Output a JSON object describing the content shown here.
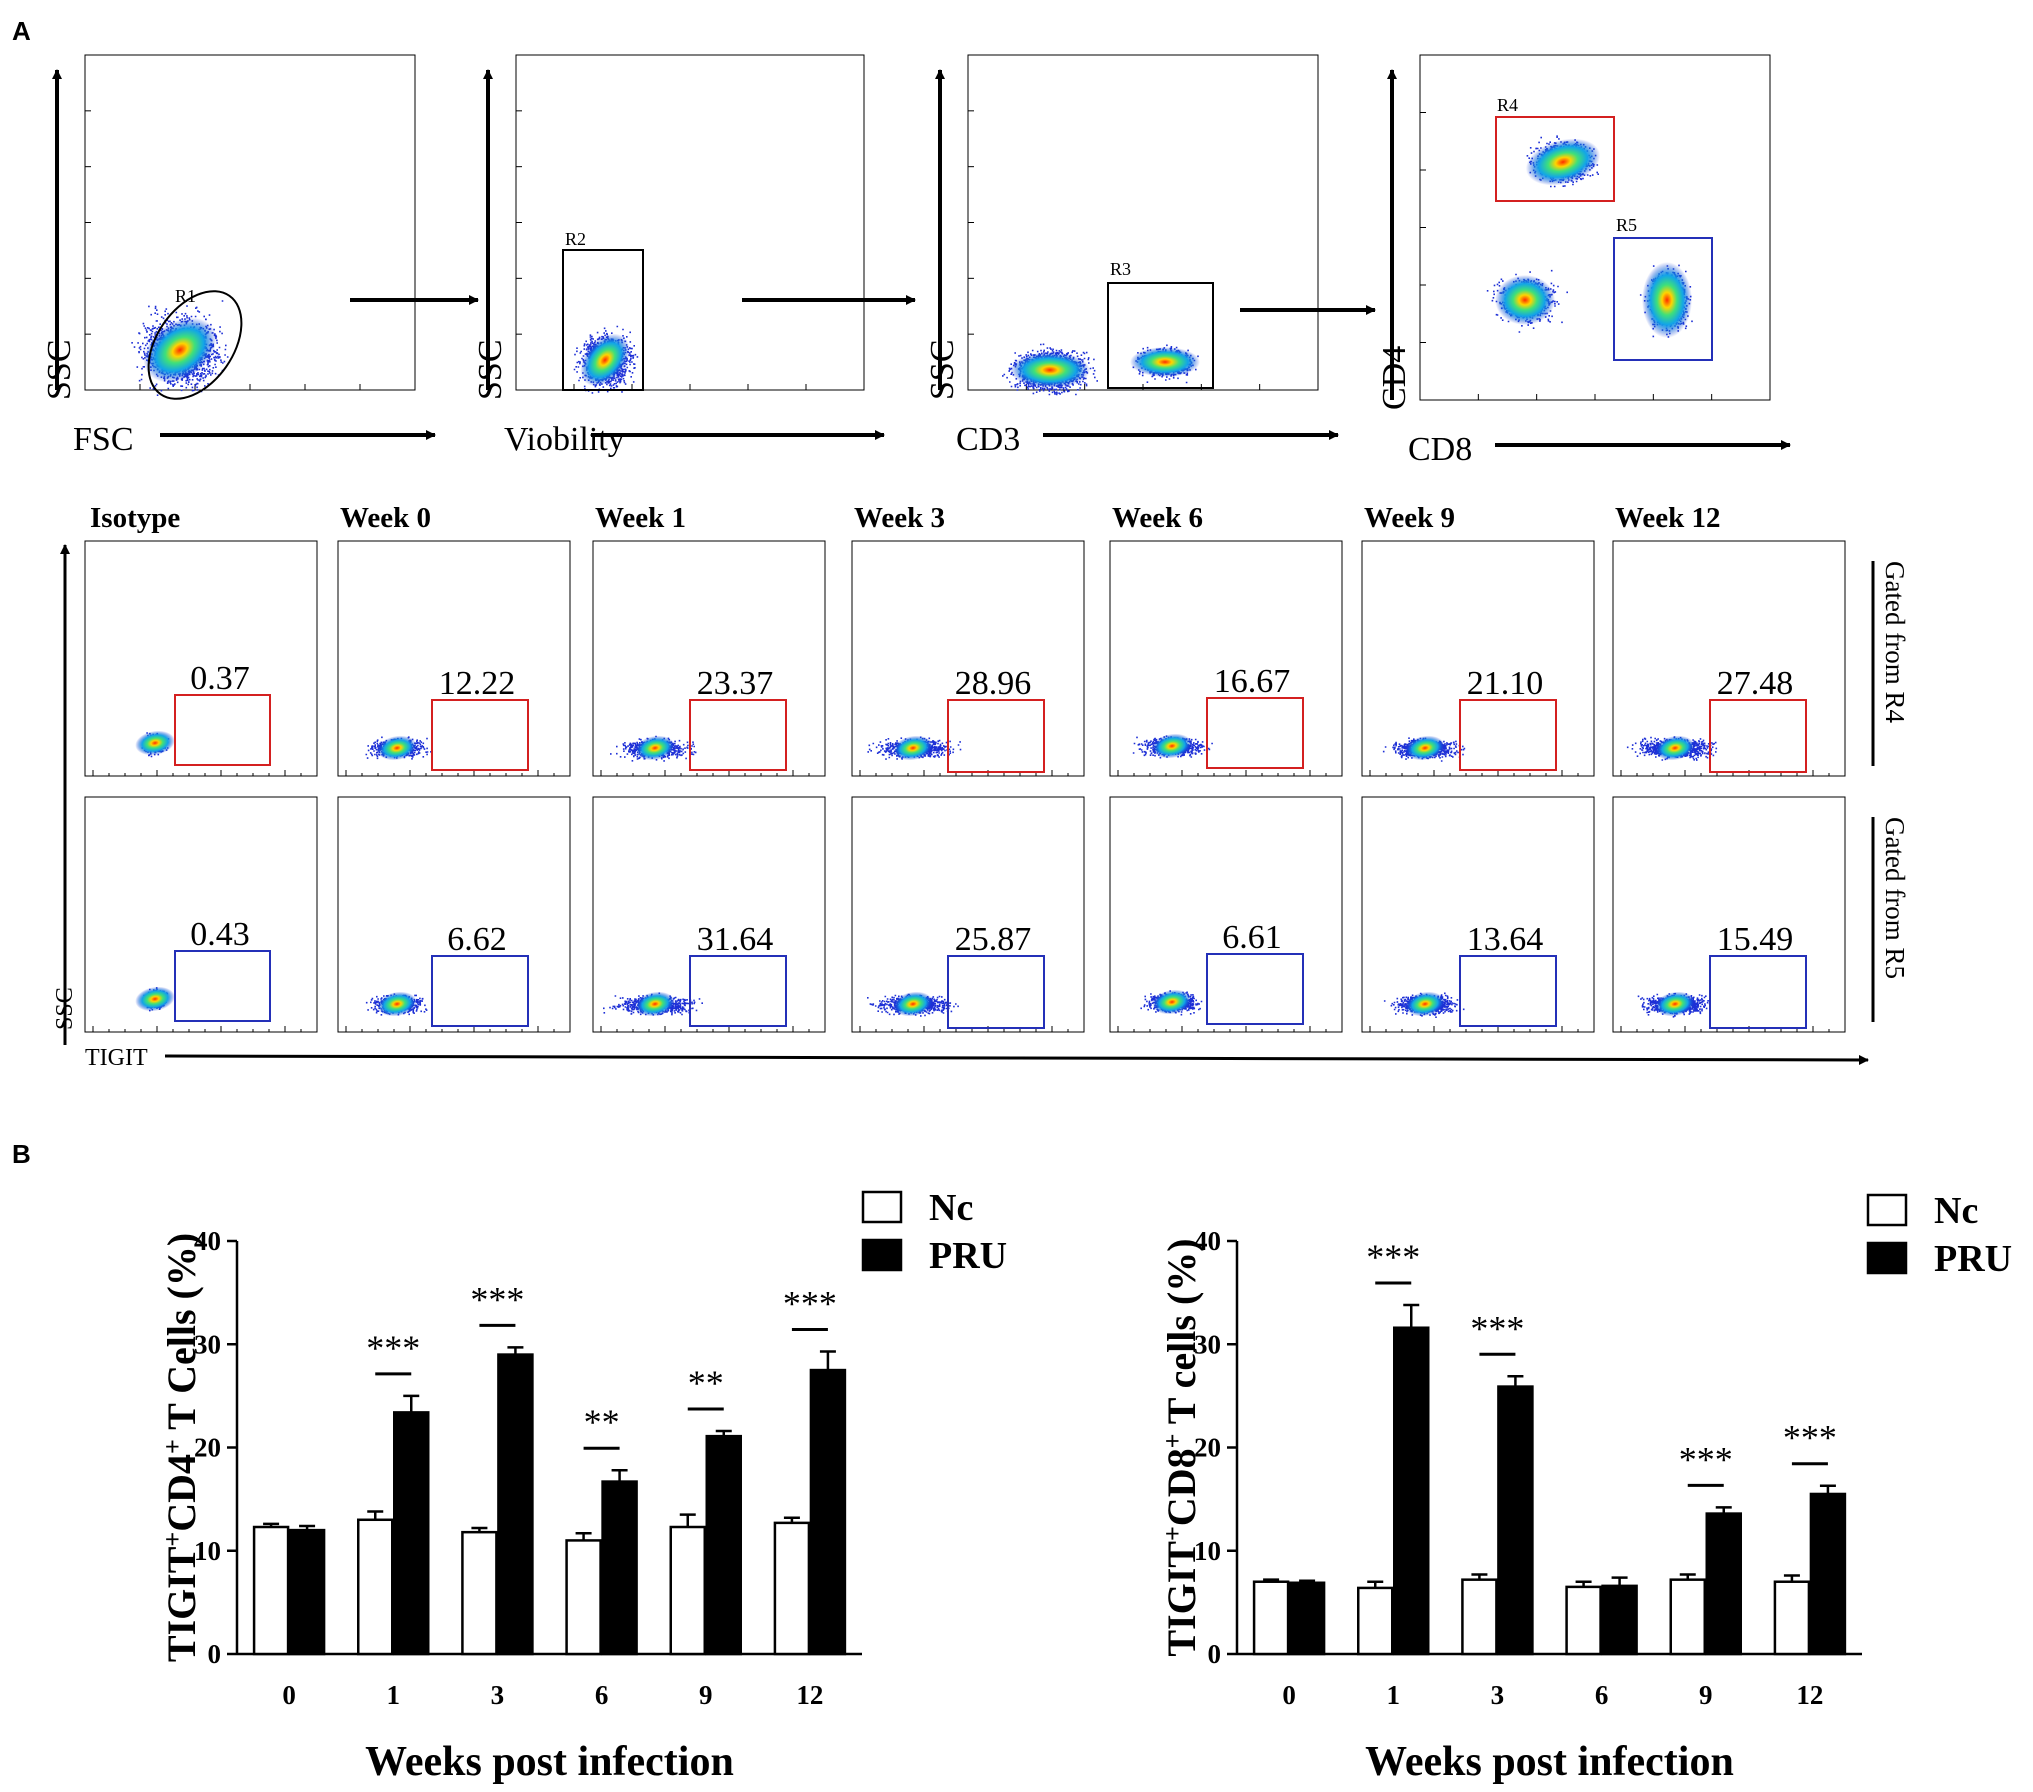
{
  "panel_a": {
    "letter": "A",
    "gating": [
      {
        "x_label": "FSC",
        "y_label": "SSC",
        "gate_label": "R1"
      },
      {
        "x_label": "Viobility",
        "y_label": "SSC",
        "gate_label": "R2"
      },
      {
        "x_label": "CD3",
        "y_label": "SSC",
        "gate_label": "R3"
      },
      {
        "x_label": "CD8",
        "y_label": "CD4",
        "gate_labels": [
          "R4",
          "R5"
        ]
      }
    ],
    "columns": [
      "Isotype",
      "Week 0",
      "Week 1",
      "Week 3",
      "Week 6",
      "Week 9",
      "Week 12"
    ],
    "row_labels": [
      "Gated from R4",
      "Gated from R5"
    ],
    "row_r4_values": [
      "0.37",
      "12.22",
      "23.37",
      "28.96",
      "16.67",
      "21.10",
      "27.48"
    ],
    "row_r5_values": [
      "0.43",
      "6.62",
      "31.64",
      "25.87",
      "6.61",
      "13.64",
      "15.49"
    ],
    "x_axis_label": "TIGIT",
    "y_axis_label": "SSC",
    "colors": {
      "r4_gate": "#d42020",
      "r5_gate": "#2430b8"
    }
  },
  "panel_b": {
    "letter": "B"
  },
  "chart_data": [
    {
      "type": "bar",
      "title": "",
      "xlabel": "Weeks post infection",
      "ylabel": "TIGIT+CD4+ T Cells (%)",
      "ylabel_parts": [
        "TIGIT",
        "+",
        "CD4",
        "+",
        " T Cells (%)"
      ],
      "categories": [
        "0",
        "1",
        "3",
        "6",
        "9",
        "12"
      ],
      "ylim": [
        0,
        40
      ],
      "yticks": [
        "0",
        "10",
        "20",
        "30",
        "40"
      ],
      "legend": [
        "Nc",
        "PRU"
      ],
      "series": [
        {
          "name": "Nc",
          "color": "#ffffff",
          "values": [
            12.3,
            13.0,
            11.8,
            11.0,
            12.3,
            12.7
          ],
          "errors": [
            0.3,
            0.8,
            0.4,
            0.7,
            1.2,
            0.5
          ]
        },
        {
          "name": "PRU",
          "color": "#000000",
          "values": [
            12.0,
            23.4,
            29.0,
            16.7,
            21.1,
            27.5
          ],
          "errors": [
            0.4,
            1.6,
            0.7,
            1.1,
            0.5,
            1.8
          ]
        }
      ],
      "significance": [
        "",
        "***",
        "***",
        "**",
        "**",
        "***"
      ]
    },
    {
      "type": "bar",
      "title": "",
      "xlabel": "Weeks post infection",
      "ylabel": "TIGIT+CD8+ T cells (%)",
      "ylabel_parts": [
        "TIGIT",
        "+",
        "CD8",
        "+",
        " T cells (%)"
      ],
      "categories": [
        "0",
        "1",
        "3",
        "6",
        "9",
        "12"
      ],
      "ylim": [
        0,
        40
      ],
      "yticks": [
        "0",
        "10",
        "20",
        "30",
        "40"
      ],
      "legend": [
        "Nc",
        "PRU"
      ],
      "series": [
        {
          "name": "Nc",
          "color": "#ffffff",
          "values": [
            7.0,
            6.4,
            7.2,
            6.5,
            7.2,
            7.0
          ],
          "errors": [
            0.2,
            0.6,
            0.5,
            0.5,
            0.5,
            0.6
          ]
        },
        {
          "name": "PRU",
          "color": "#000000",
          "values": [
            6.9,
            31.6,
            25.9,
            6.6,
            13.6,
            15.5
          ],
          "errors": [
            0.2,
            2.2,
            1.0,
            0.8,
            0.6,
            0.8
          ]
        }
      ],
      "significance": [
        "",
        "***",
        "***",
        "",
        "***",
        "***"
      ]
    }
  ]
}
